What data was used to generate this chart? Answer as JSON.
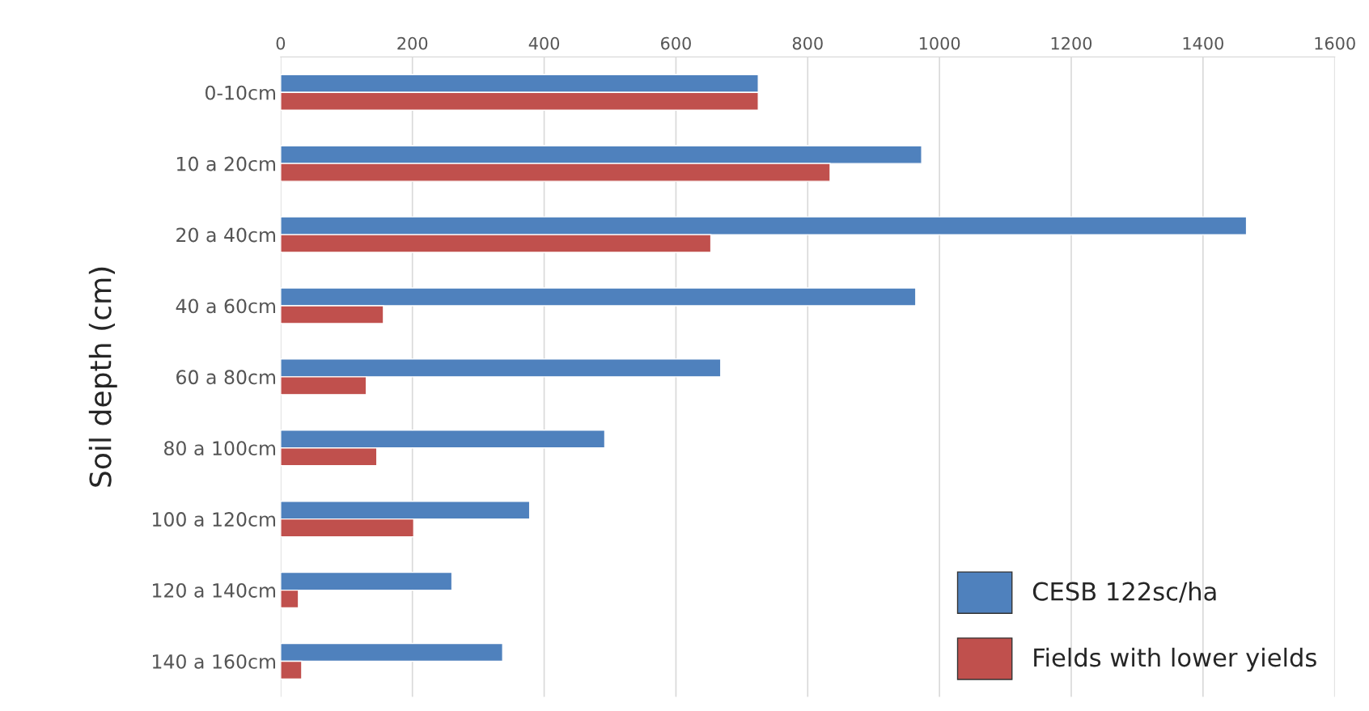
{
  "chart_data": {
    "type": "bar",
    "orientation": "horizontal",
    "ylabel": "Soil depth (cm)",
    "categories": [
      "0-10cm",
      "10 a 20cm",
      "20 a 40cm",
      "40 a 60cm",
      "60 a 80cm",
      "80 a 100cm",
      "100 a 120cm",
      "120 a 140cm",
      "140 a 160cm"
    ],
    "series": [
      {
        "name": "CESB 122sc/ha",
        "color": "#4f81bd",
        "values": [
          725,
          973,
          1466,
          964,
          668,
          492,
          378,
          260,
          337
        ]
      },
      {
        "name": "Fields with lower yields",
        "color": "#c0504d",
        "values": [
          725,
          834,
          653,
          156,
          130,
          146,
          202,
          27,
          32
        ]
      }
    ],
    "xlim": [
      0,
      1600
    ],
    "xticks": [
      0,
      200,
      400,
      600,
      800,
      1000,
      1200,
      1400,
      1600
    ],
    "grid": "x",
    "legend": "bottom right"
  }
}
